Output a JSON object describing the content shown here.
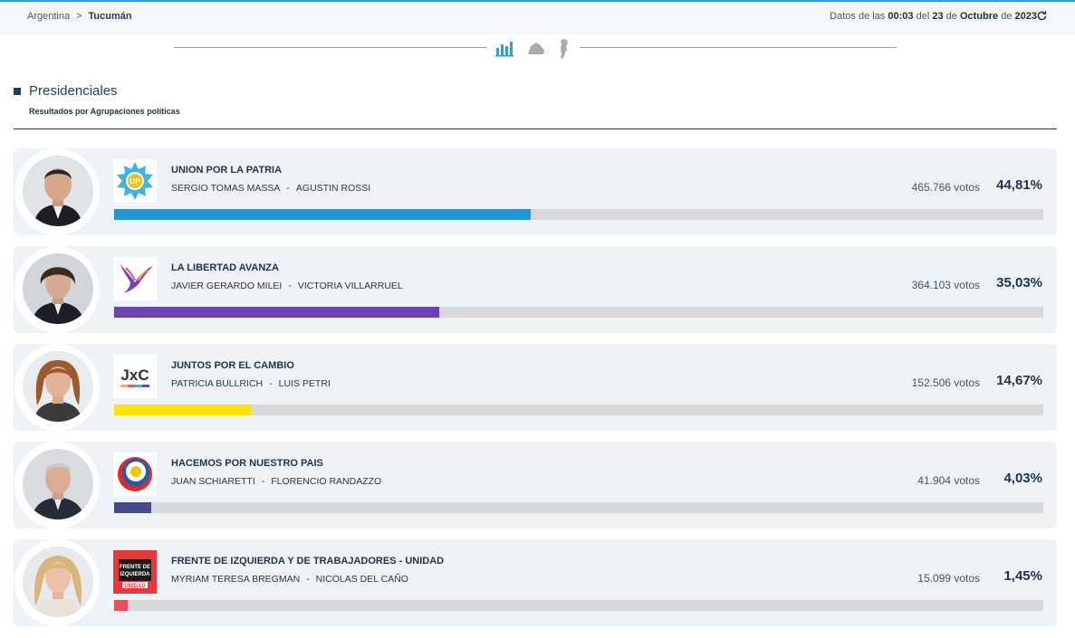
{
  "breadcrumb": {
    "root": "Argentina",
    "separator": ">",
    "current": "Tucumán"
  },
  "timestamp": {
    "prefix": "Datos de las",
    "time": "00:03",
    "del": "del",
    "day": "23",
    "de1": "de",
    "month": "Octubre",
    "de2": "de",
    "year": "2023"
  },
  "section": {
    "title": "Presidenciales",
    "subtitle": "Resultados por Agrupaciones políticas"
  },
  "results": [
    {
      "party": "UNION POR LA PATRIA",
      "candidate": "SERGIO TOMAS MASSA",
      "running_mate": "AGUSTIN ROSSI",
      "votes": "465.766 votos",
      "percent": "44,81%",
      "share": 0.4481,
      "color": "#1a9ad8",
      "logo_text": "UP"
    },
    {
      "party": "LA LIBERTAD AVANZA",
      "candidate": "JAVIER GERARDO MILEI",
      "running_mate": "VICTORIA VILLARRUEL",
      "votes": "364.103 votos",
      "percent": "35,03%",
      "share": 0.3503,
      "color": "#6d3fbb",
      "logo_text": ""
    },
    {
      "party": "JUNTOS POR EL CAMBIO",
      "candidate": "PATRICIA BULLRICH",
      "running_mate": "LUIS PETRI",
      "votes": "152.506 votos",
      "percent": "14,67%",
      "share": 0.1467,
      "color": "#fde10a",
      "logo_text": "JxC"
    },
    {
      "party": "HACEMOS POR NUESTRO PAIS",
      "candidate": "JUAN SCHIARETTI",
      "running_mate": "FLORENCIO RANDAZZO",
      "votes": "41.904 votos",
      "percent": "4,03%",
      "share": 0.0403,
      "color": "#444a8c",
      "logo_text": ""
    },
    {
      "party": "FRENTE DE IZQUIERDA Y DE TRABAJADORES - UNIDAD",
      "candidate": "MYRIAM TERESA BREGMAN",
      "running_mate": "NICOLAS DEL CAÑO",
      "votes": "15.099 votos",
      "percent": "1,45%",
      "share": 0.0145,
      "color": "#ef4b59",
      "logo_text": "FRENTE DE IZQUIERDA UNIDAD"
    }
  ],
  "icons": {
    "refresh": "refresh-icon",
    "views": [
      "bar-chart-icon",
      "map-region-icon",
      "map-country-icon"
    ]
  }
}
